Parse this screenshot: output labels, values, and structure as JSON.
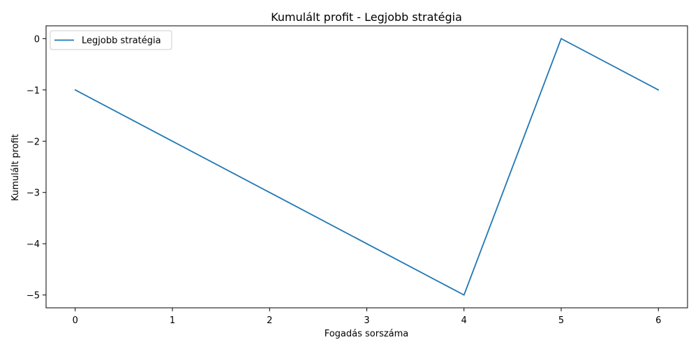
{
  "chart_data": {
    "type": "line",
    "title": "Kumulált profit - Legjobb stratégia",
    "xlabel": "Fogadás sorszáma",
    "ylabel": "Kumulált profit",
    "x": [
      0,
      1,
      2,
      3,
      4,
      5,
      6
    ],
    "series": [
      {
        "name": "Legjobb stratégia",
        "values": [
          -1,
          -2,
          -3,
          -4,
          -5,
          0,
          -1
        ],
        "color": "#1f77b4"
      }
    ],
    "xlim": [
      -0.3,
      6.3
    ],
    "ylim": [
      -5.25,
      0.25
    ],
    "xticks": [
      0,
      1,
      2,
      3,
      4,
      5,
      6
    ],
    "xtick_labels": [
      "0",
      "1",
      "2",
      "3",
      "4",
      "5",
      "6"
    ],
    "yticks": [
      0,
      -1,
      -2,
      -3,
      -4,
      -5
    ],
    "ytick_labels": [
      "0",
      "−1",
      "−2",
      "−3",
      "−4",
      "−5"
    ],
    "grid": false,
    "legend_position": "top-left"
  }
}
